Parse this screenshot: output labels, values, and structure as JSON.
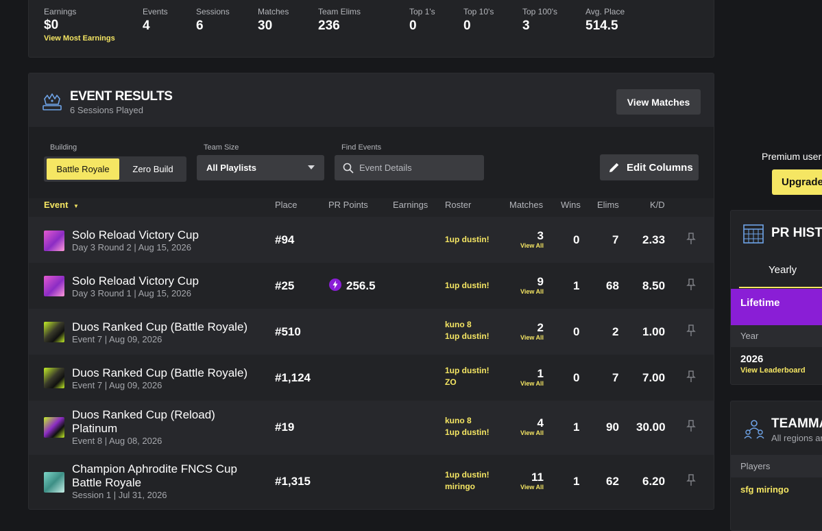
{
  "stats": [
    {
      "label": "Earnings",
      "value": "$0",
      "link": "View Most Earnings"
    },
    {
      "label": "Events",
      "value": "4"
    },
    {
      "label": "Sessions",
      "value": "6"
    },
    {
      "label": "Matches",
      "value": "30"
    },
    {
      "label": "Team Elims",
      "value": "236"
    },
    {
      "label": "Top 1's",
      "value": "0"
    },
    {
      "label": "Top 10's",
      "value": "0"
    },
    {
      "label": "Top 100's",
      "value": "3"
    },
    {
      "label": "Avg. Place",
      "value": "514.5"
    }
  ],
  "results": {
    "title": "EVENT RESULTS",
    "subtitle": "6 Sessions Played",
    "view_matches": "View Matches",
    "filters": {
      "building_label": "Building",
      "building_options": [
        "Battle Royale",
        "Zero Build"
      ],
      "team_size_label": "Team Size",
      "team_size_value": "All Playlists",
      "find_label": "Find Events",
      "find_placeholder": "Event Details",
      "edit_columns": "Edit Columns"
    },
    "columns": {
      "event": "Event",
      "place": "Place",
      "pr": "PR Points",
      "earnings": "Earnings",
      "roster": "Roster",
      "matches": "Matches",
      "wins": "Wins",
      "elims": "Elims",
      "kd": "K/D"
    },
    "view_all": "View All",
    "rows": [
      {
        "title": "Solo Reload Victory Cup",
        "sub": "Day 3 Round 2 | Aug 15, 2026",
        "place": "#94",
        "pr": "",
        "roster": [
          "1up dustin!"
        ],
        "matches": "3",
        "wins": "0",
        "elims": "7",
        "kd": "2.33"
      },
      {
        "title": "Solo Reload Victory Cup",
        "sub": "Day 3 Round 1 | Aug 15, 2026",
        "place": "#25",
        "pr": "256.5",
        "roster": [
          "1up dustin!"
        ],
        "matches": "9",
        "wins": "1",
        "elims": "68",
        "kd": "8.50"
      },
      {
        "title": "Duos Ranked Cup (Battle Royale)",
        "sub": "Event 7 | Aug 09, 2026",
        "place": "#510",
        "pr": "",
        "roster": [
          "kuno 8",
          "1up dustin!"
        ],
        "matches": "2",
        "wins": "0",
        "elims": "2",
        "kd": "1.00"
      },
      {
        "title": "Duos Ranked Cup (Battle Royale)",
        "sub": "Event 7 | Aug 09, 2026",
        "place": "#1,124",
        "pr": "",
        "roster": [
          "1up dustin!",
          "ZO"
        ],
        "matches": "1",
        "wins": "0",
        "elims": "7",
        "kd": "7.00"
      },
      {
        "title": "Duos Ranked Cup (Reload) Platinum",
        "sub": "Event 8 | Aug 08, 2026",
        "place": "#19",
        "pr": "",
        "roster": [
          "kuno 8",
          "1up dustin!"
        ],
        "matches": "4",
        "wins": "1",
        "elims": "90",
        "kd": "30.00"
      },
      {
        "title": "Champion Aphrodite FNCS Cup Battle Royale",
        "sub": "Session 1 | Jul 31, 2026",
        "place": "#1,315",
        "pr": "",
        "roster": [
          "1up dustin!",
          "miringo"
        ],
        "matches": "11",
        "wins": "1",
        "elims": "62",
        "kd": "6.20"
      }
    ]
  },
  "sidebar": {
    "premium_text": "Premium user",
    "upgrade": "Upgrade",
    "pr_title": "PR HISTO",
    "tab_yearly": "Yearly",
    "lifetime": "Lifetime",
    "year_label": "Year",
    "year_value": "2026",
    "view_leaderboard": "View Leaderboard",
    "team_title": "TEAMMA",
    "team_sub": "All regions ar",
    "players_label": "Players",
    "player_1": "sfg miringo"
  },
  "colors": {
    "accent_yellow": "#f5e663",
    "purple": "#8a1ed6"
  }
}
